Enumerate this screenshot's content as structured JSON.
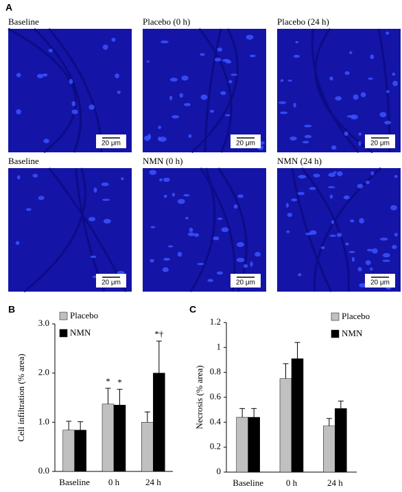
{
  "panel_a": {
    "label": "A",
    "images": [
      {
        "caption": "Baseline",
        "scale_bar": "20 μm"
      },
      {
        "caption": "Placebo (0 h)",
        "scale_bar": "20 μm"
      },
      {
        "caption": "Placebo (24 h)",
        "scale_bar": "20 μm"
      },
      {
        "caption": "Baseline",
        "scale_bar": "20 μm"
      },
      {
        "caption": "NMN (0 h)",
        "scale_bar": "20 μm"
      },
      {
        "caption": "NMN (24 h)",
        "scale_bar": "20 μm"
      }
    ]
  },
  "chart_data": [
    {
      "type": "bar",
      "panel": "B",
      "y_label": "Cell infiltration (% area)",
      "categories": [
        "Baseline",
        "0 h",
        "24 h"
      ],
      "series": [
        {
          "name": "Placebo",
          "color": "#c0c0c0",
          "values": [
            0.84,
            1.37,
            1.0
          ],
          "errors": [
            0.18,
            0.32,
            0.21
          ],
          "significance": [
            null,
            "*",
            null
          ]
        },
        {
          "name": "NMN",
          "color": "#000000",
          "values": [
            0.84,
            1.35,
            2.0
          ],
          "errors": [
            0.17,
            0.32,
            0.65
          ],
          "significance": [
            null,
            "*",
            "*†"
          ]
        }
      ],
      "ylim": [
        0,
        3
      ],
      "yticks": [
        {
          "value": 0,
          "label": "0.0"
        },
        {
          "value": 1,
          "label": "1.0"
        },
        {
          "value": 2,
          "label": "2.0"
        },
        {
          "value": 3,
          "label": "3.0"
        }
      ],
      "legend": "top-left"
    },
    {
      "type": "bar",
      "panel": "C",
      "y_label": "Necrosis (% area)",
      "categories": [
        "Baseline",
        "0 h",
        "24 h"
      ],
      "series": [
        {
          "name": "Placebo",
          "color": "#c0c0c0",
          "values": [
            0.44,
            0.75,
            0.37
          ],
          "errors": [
            0.07,
            0.12,
            0.06
          ]
        },
        {
          "name": "NMN",
          "color": "#000000",
          "values": [
            0.44,
            0.91,
            0.51
          ],
          "errors": [
            0.07,
            0.13,
            0.06
          ]
        }
      ],
      "ylim": [
        0,
        1.2
      ],
      "yticks": [
        0,
        0.2,
        0.4,
        0.6,
        0.8,
        1,
        1.2
      ],
      "legend": "top-right"
    }
  ]
}
